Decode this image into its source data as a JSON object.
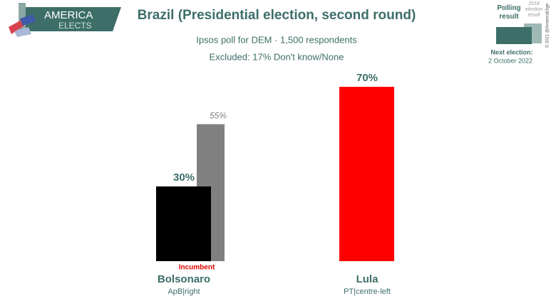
{
  "chart_data": {
    "type": "bar",
    "title": "Brazil (Presidential election, second round)",
    "subtitle": "Ipsos poll for DEM · 1,500 respondents",
    "note": "Excluded: 17% Don't know/None",
    "categories": [
      "Bolsonaro",
      "Lula"
    ],
    "category_notes": [
      "ApB|right",
      "PT|centre-left"
    ],
    "annotation": "Incumbent",
    "ylim": [
      0,
      70
    ],
    "series": [
      {
        "name": "Polling result",
        "colors": [
          "#000000",
          "#ff0000"
        ],
        "values": [
          30,
          70
        ],
        "value_labels": [
          "30%",
          "70%"
        ]
      },
      {
        "name": "2018 election result",
        "color": "#808080",
        "values": [
          55,
          null
        ],
        "value_labels": [
          "55%",
          null
        ]
      }
    ],
    "logo": [
      "AMERICA",
      "ELECTS"
    ],
    "next_election_label": "Next election:",
    "next_election_date": "2 October 2022",
    "copyright": "© 2021 @AmericaElige"
  }
}
